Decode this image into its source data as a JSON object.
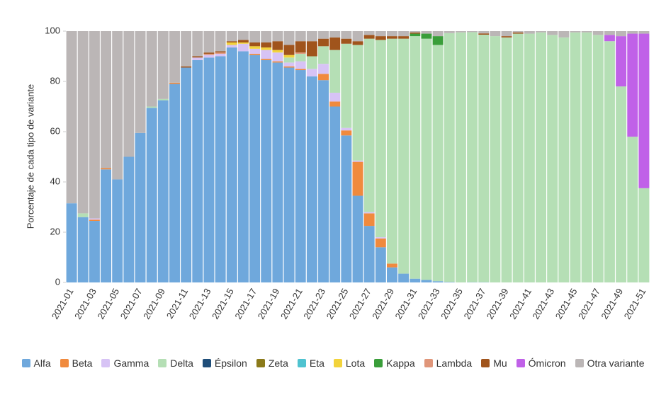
{
  "chart_data": {
    "type": "stacked-bar",
    "y_label": "Porcentaje de cada tipo de variante",
    "categories": [
      "2021-01",
      null,
      "2021-03",
      null,
      "2021-05",
      null,
      "2021-07",
      null,
      "2021-09",
      null,
      "2021-11",
      null,
      "2021-13",
      null,
      "2021-15",
      null,
      "2021-17",
      null,
      "2021-19",
      null,
      "2021-21",
      null,
      "2021-23",
      null,
      "2021-25",
      null,
      "2021-27",
      null,
      "2021-29",
      null,
      "2021-31",
      null,
      "2021-33",
      null,
      "2021-35",
      null,
      "2021-37",
      null,
      "2021-39",
      null,
      "2021-41",
      null,
      "2021-43",
      null,
      "2021-45",
      null,
      "2021-47",
      null,
      "2021-49",
      null,
      "2021-51"
    ],
    "ylim": [
      0,
      100
    ],
    "yticks": [
      0,
      20,
      40,
      60,
      80,
      100
    ],
    "series": [
      {
        "name": "Alfa",
        "color": "#6fa8dc",
        "values": [
          31.5,
          26,
          24.5,
          45,
          41,
          50,
          59.5,
          69.5,
          72.5,
          79,
          85.5,
          88.5,
          89.5,
          90,
          93.5,
          92,
          90.5,
          88.5,
          87.5,
          85.5,
          84.5,
          82,
          80.5,
          70,
          58.5,
          34.5,
          22.5,
          14,
          6,
          3.5,
          1.5,
          1,
          0.5,
          0.2,
          0,
          0.1,
          0.1,
          0,
          0,
          0,
          0,
          0,
          0,
          0,
          0,
          0,
          0,
          0,
          0,
          0,
          0
        ]
      },
      {
        "name": "Beta",
        "color": "#f08a3e",
        "values": [
          0,
          0,
          0.5,
          0.5,
          0,
          0,
          0,
          0,
          0,
          0.5,
          0,
          0,
          0,
          0,
          0,
          0,
          0.5,
          0.5,
          0.5,
          0.5,
          0.5,
          0,
          2.5,
          2,
          2,
          13.5,
          5,
          3.5,
          1.5,
          0,
          0,
          0,
          0,
          0,
          0,
          0,
          0,
          0,
          0,
          0,
          0,
          0,
          0,
          0,
          0,
          0,
          0,
          0,
          0,
          0,
          0
        ]
      },
      {
        "name": "Gamma",
        "color": "#d7c3f5",
        "values": [
          0,
          0,
          0.5,
          0,
          0,
          0,
          0,
          0,
          0,
          0,
          0,
          1,
          1,
          1,
          1,
          3,
          2,
          3.5,
          3.5,
          1.5,
          3,
          3,
          4,
          3.5,
          1,
          0.5,
          0.5,
          0.5,
          0,
          0,
          0,
          0,
          0,
          0,
          0,
          0,
          0,
          0,
          0,
          0,
          0,
          0,
          0,
          0,
          0,
          0,
          0,
          0,
          0,
          0,
          0
        ]
      },
      {
        "name": "Delta",
        "color": "#b5dfb5",
        "values": [
          0,
          1.5,
          0,
          0,
          0,
          0,
          0,
          0.5,
          0.5,
          0,
          0,
          0,
          0,
          0,
          0,
          0,
          0,
          0,
          0,
          2,
          3,
          5,
          7,
          17,
          33.5,
          46,
          69,
          78.5,
          89.5,
          93.5,
          96.5,
          96,
          94,
          99,
          99.5,
          99.5,
          98.5,
          98,
          97.5,
          99,
          99,
          99.5,
          98.5,
          97.5,
          99.5,
          99.5,
          98.5,
          96,
          78,
          58,
          37.5
        ]
      },
      {
        "name": "Épsilon",
        "color": "#1f4e79",
        "values": [
          0,
          0,
          0,
          0,
          0,
          0,
          0,
          0,
          0,
          0,
          0,
          0,
          0,
          0,
          0,
          0,
          0,
          0,
          0,
          0,
          0,
          0,
          0,
          0,
          0,
          0,
          0,
          0,
          0,
          0,
          0,
          0,
          0,
          0,
          0,
          0,
          0,
          0,
          0,
          0,
          0,
          0,
          0,
          0,
          0,
          0,
          0,
          0,
          0,
          0,
          0
        ]
      },
      {
        "name": "Zeta",
        "color": "#8b7a1a",
        "values": [
          0,
          0,
          0,
          0,
          0,
          0,
          0,
          0,
          0,
          0,
          0,
          0,
          0,
          0,
          0,
          0,
          0,
          0,
          0,
          0,
          0,
          0,
          0,
          0,
          0,
          0,
          0,
          0,
          0,
          0,
          0,
          0,
          0,
          0,
          0,
          0,
          0,
          0,
          0,
          0,
          0,
          0,
          0,
          0,
          0,
          0,
          0,
          0,
          0,
          0,
          0
        ]
      },
      {
        "name": "Eta",
        "color": "#4fc3d0",
        "values": [
          0,
          0,
          0,
          0,
          0,
          0,
          0,
          0,
          0,
          0,
          0,
          0,
          0,
          0,
          0,
          0,
          0,
          0,
          0,
          0,
          0,
          0,
          0,
          0,
          0,
          0,
          0,
          0,
          0,
          0,
          0,
          0,
          0,
          0,
          0,
          0,
          0,
          0,
          0,
          0,
          0,
          0,
          0,
          0,
          0,
          0,
          0,
          0,
          0,
          0,
          0
        ]
      },
      {
        "name": "Lota",
        "color": "#f2d33b",
        "values": [
          0,
          0,
          0,
          0,
          0,
          0,
          0,
          0,
          0,
          0,
          0,
          0,
          0,
          0,
          1,
          0.5,
          1,
          1,
          1,
          1,
          0,
          0,
          0,
          0,
          0,
          0,
          0,
          0,
          0,
          0,
          0,
          0,
          0,
          0,
          0,
          0,
          0,
          0,
          0,
          0,
          0,
          0,
          0,
          0,
          0,
          0,
          0,
          0,
          0,
          0,
          0
        ]
      },
      {
        "name": "Kappa",
        "color": "#3a9e3a",
        "values": [
          0,
          0,
          0,
          0,
          0,
          0,
          0,
          0,
          0,
          0,
          0,
          0,
          0,
          0,
          0,
          0,
          0,
          0,
          0,
          0,
          0,
          0,
          0,
          0,
          0,
          0,
          0,
          0,
          0,
          0,
          1,
          2,
          3.5,
          0,
          0,
          0,
          0,
          0,
          0,
          0,
          0,
          0,
          0,
          0,
          0,
          0,
          0,
          0,
          0,
          0,
          0
        ]
      },
      {
        "name": "Lambda",
        "color": "#e0967a",
        "values": [
          0,
          0,
          0,
          0,
          0,
          0,
          0,
          0,
          0,
          0,
          0,
          0,
          0.5,
          0.5,
          0,
          0,
          0,
          0,
          0,
          0,
          0.5,
          0,
          0,
          0,
          0,
          0,
          0,
          0,
          0,
          0,
          0,
          0,
          0,
          0,
          0,
          0,
          0,
          0,
          0,
          0,
          0,
          0,
          0,
          0,
          0,
          0,
          0,
          0,
          0,
          0,
          0
        ]
      },
      {
        "name": "Mu",
        "color": "#a0541c",
        "values": [
          0,
          0,
          0,
          0,
          0,
          0,
          0,
          0,
          0,
          0,
          0.5,
          0.5,
          0.5,
          0.5,
          0.5,
          1,
          1.5,
          2,
          3.5,
          4,
          4.5,
          6,
          3,
          5,
          2,
          1.5,
          1.5,
          1.5,
          1,
          1,
          0.5,
          0,
          0,
          0,
          0,
          0,
          0.5,
          0,
          0.5,
          0.5,
          0,
          0,
          0,
          0,
          0,
          0,
          0,
          0,
          0,
          0,
          0
        ]
      },
      {
        "name": "Ómicron",
        "color": "#c061e8",
        "values": [
          0,
          0,
          0,
          0,
          0,
          0,
          0,
          0,
          0,
          0,
          0,
          0,
          0,
          0,
          0,
          0,
          0,
          0,
          0,
          0,
          0,
          0,
          0,
          0,
          0,
          0,
          0,
          0,
          0,
          0,
          0,
          0,
          0,
          0,
          0,
          0,
          0,
          0,
          0,
          0,
          0,
          0,
          0,
          0,
          0,
          0,
          0,
          2.5,
          20,
          41,
          61.5
        ]
      },
      {
        "name": "Otra variante",
        "color": "#bbb6b6",
        "values": [
          68.5,
          72.5,
          74.5,
          54.5,
          59,
          50,
          40.5,
          30,
          27,
          20.5,
          14,
          10,
          8.5,
          8,
          4,
          3.5,
          4.5,
          4.5,
          4,
          5.5,
          4,
          4,
          3,
          2.5,
          3,
          4,
          1.5,
          2,
          2,
          2,
          0.5,
          1,
          2,
          0.8,
          0.5,
          0.4,
          0.9,
          2,
          2,
          0.5,
          1,
          0.5,
          1.5,
          2.5,
          0.5,
          0.5,
          1.5,
          1.5,
          2,
          1,
          1
        ]
      }
    ]
  }
}
